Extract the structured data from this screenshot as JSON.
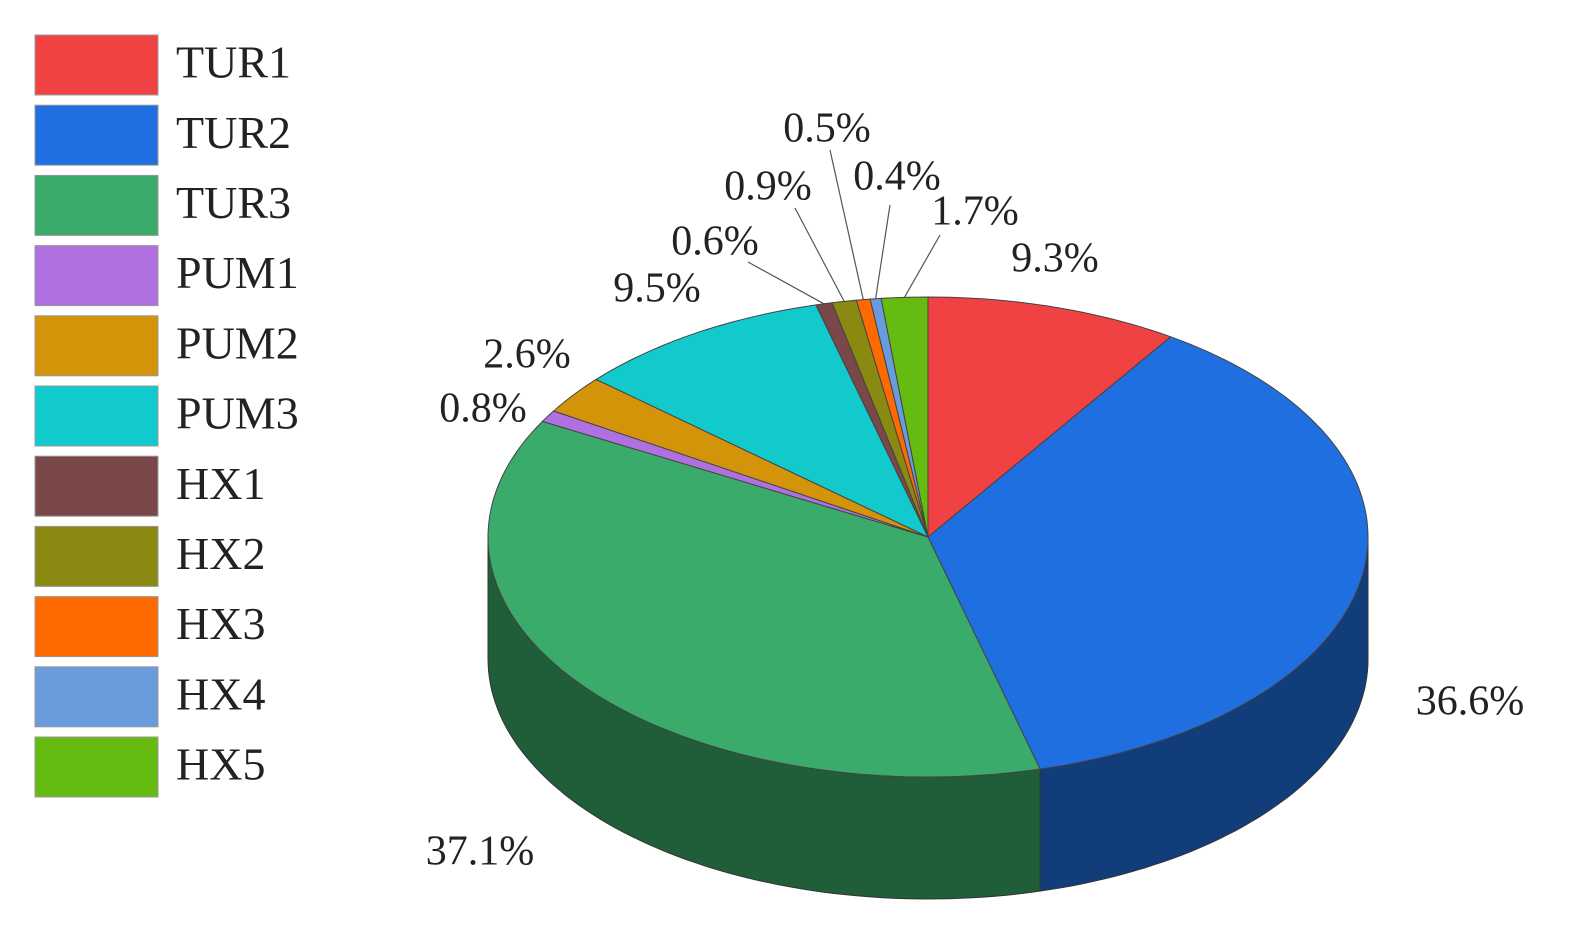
{
  "chart_data": {
    "type": "pie",
    "categories": [
      "TUR1",
      "TUR2",
      "TUR3",
      "PUM1",
      "PUM2",
      "PUM3",
      "HX1",
      "HX2",
      "HX3",
      "HX4",
      "HX5"
    ],
    "values": [
      9.3,
      36.6,
      37.1,
      0.8,
      2.6,
      9.5,
      0.6,
      0.9,
      0.5,
      0.4,
      1.7
    ],
    "value_labels": [
      "9.3%",
      "36.6%",
      "37.1%",
      "0.8%",
      "2.6%",
      "9.5%",
      "0.6%",
      "0.9%",
      "0.5%",
      "0.4%",
      "1.7%"
    ],
    "colors": [
      "#f04242",
      "#1f6fe0",
      "#3aab6a",
      "#b070e0",
      "#d4940a",
      "#12c9cc",
      "#7a4848",
      "#8a8a12",
      "#ff6a00",
      "#6a9bdc",
      "#66bb11"
    ]
  }
}
